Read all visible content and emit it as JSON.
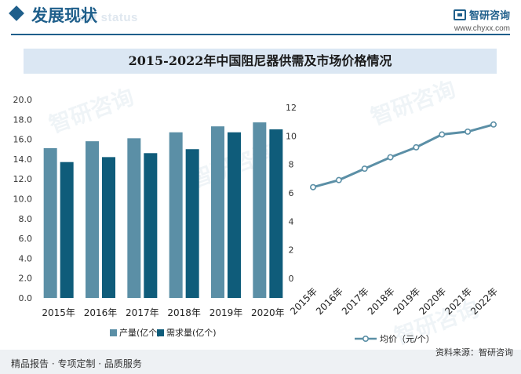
{
  "header": {
    "title": "发展现状",
    "subtitle": "ent status",
    "logo_text": "智研咨询",
    "site": "www.chyxx.com"
  },
  "chart_title": "2015-2022年中国阻尼器供需及市场价格情况",
  "footer": {
    "left": "精品报告 · 专项定制 · 品质服务",
    "source": "资料来源：智研咨询"
  },
  "watermark": "智研咨询",
  "colors": {
    "brand": "#1f5f8b",
    "production": "#5b8fa6",
    "demand": "#0f5c7a",
    "price_line": "#5b8fa6",
    "title_band": "#dbe7f3"
  },
  "chart_data": [
    {
      "type": "bar",
      "categories": [
        "2015年",
        "2016年",
        "2017年",
        "2018年",
        "2019年",
        "2020年"
      ],
      "series": [
        {
          "name": "产量(亿个)",
          "values": [
            15.1,
            15.8,
            16.1,
            16.7,
            17.3,
            17.7
          ]
        },
        {
          "name": "需求量(亿个)",
          "values": [
            13.7,
            14.2,
            14.6,
            15.0,
            16.7,
            17.0
          ]
        }
      ],
      "ylim": [
        0,
        20
      ],
      "yticks": [
        "0.0",
        "2.0",
        "4.0",
        "6.0",
        "8.0",
        "10.0",
        "12.0",
        "14.0",
        "16.0",
        "18.0",
        "20.0"
      ],
      "legend_position": "bottom",
      "grid": false
    },
    {
      "type": "line",
      "categories": [
        "2015年",
        "2016年",
        "2017年",
        "2018年",
        "2019年",
        "2020年",
        "2021年",
        "2022年"
      ],
      "series": [
        {
          "name": "均价（元/个）",
          "values": [
            6.4,
            6.9,
            7.7,
            8.5,
            9.2,
            10.1,
            10.3,
            10.8
          ]
        }
      ],
      "ylim": [
        0,
        12
      ],
      "yticks": [
        "0",
        "2",
        "4",
        "6",
        "8",
        "10",
        "12"
      ],
      "legend_position": "bottom",
      "grid": false
    }
  ]
}
